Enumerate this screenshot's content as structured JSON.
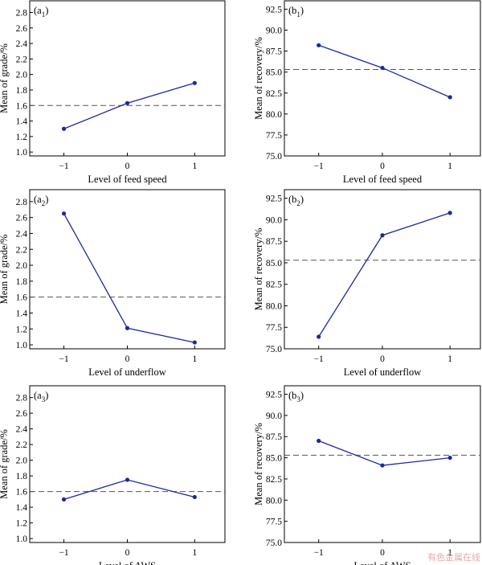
{
  "colors": {
    "series": "#1c2a9c",
    "reference": "#555555",
    "watermark": "#e8a8a8"
  },
  "watermark": "有色金属在线",
  "chart_data": [
    {
      "type": "line",
      "id": "a1",
      "panel_base": "a",
      "panel_sub": "1",
      "xlabel": "Level of feed speed",
      "ylabel": "Mean of grade/%",
      "x": [
        -1,
        0,
        1
      ],
      "values": [
        1.3,
        1.63,
        1.89
      ],
      "reference": 1.6,
      "ylim": [
        0.95,
        2.95
      ],
      "yticks": [
        "1.0",
        "1.2",
        "1.4",
        "1.6",
        "1.8",
        "2.0",
        "2.2",
        "2.4",
        "2.6",
        "2.8"
      ],
      "xticks": [
        "−1",
        "0",
        "1"
      ],
      "grid": false
    },
    {
      "type": "line",
      "id": "b1",
      "panel_base": "b",
      "panel_sub": "1",
      "xlabel": "Level of feed speed",
      "ylabel": "Mean of recovery/%",
      "x": [
        -1,
        0,
        1
      ],
      "values": [
        88.2,
        85.5,
        82.0
      ],
      "reference": 85.3,
      "ylim": [
        75.0,
        93.5
      ],
      "yticks": [
        "75.0",
        "77.5",
        "80.0",
        "82.5",
        "85.0",
        "87.5",
        "90.0",
        "92.5"
      ],
      "xticks": [
        "−1",
        "0",
        "1"
      ],
      "grid": false
    },
    {
      "type": "line",
      "id": "a2",
      "panel_base": "a",
      "panel_sub": "2",
      "xlabel": "Level of underflow",
      "ylabel": "Mean of grade/%",
      "x": [
        -1,
        0,
        1
      ],
      "values": [
        2.65,
        1.21,
        1.03
      ],
      "reference": 1.6,
      "ylim": [
        0.95,
        2.95
      ],
      "yticks": [
        "1.0",
        "1.2",
        "1.4",
        "1.6",
        "1.8",
        "2.0",
        "2.2",
        "2.4",
        "2.6",
        "2.8"
      ],
      "xticks": [
        "−1",
        "0",
        "1"
      ],
      "grid": false
    },
    {
      "type": "line",
      "id": "b2",
      "panel_base": "b",
      "panel_sub": "2",
      "xlabel": "Level of underflow",
      "ylabel": "Mean of recovery/%",
      "x": [
        -1,
        0,
        1
      ],
      "values": [
        76.4,
        88.2,
        90.8
      ],
      "reference": 85.3,
      "ylim": [
        75.0,
        93.5
      ],
      "yticks": [
        "75.0",
        "77.5",
        "80.0",
        "82.5",
        "85.0",
        "87.5",
        "90.0",
        "92.5"
      ],
      "xticks": [
        "−1",
        "0",
        "1"
      ],
      "grid": false
    },
    {
      "type": "line",
      "id": "a3",
      "panel_base": "a",
      "panel_sub": "3",
      "xlabel": "Level of AWS",
      "ylabel": "Mean of grade/%",
      "x": [
        -1,
        0,
        1
      ],
      "values": [
        1.5,
        1.75,
        1.53
      ],
      "reference": 1.6,
      "ylim": [
        0.95,
        2.95
      ],
      "yticks": [
        "1.0",
        "1.2",
        "1.4",
        "1.6",
        "1.8",
        "2.0",
        "2.2",
        "2.4",
        "2.6",
        "2.8"
      ],
      "xticks": [
        "−1",
        "0",
        "1"
      ],
      "grid": false
    },
    {
      "type": "line",
      "id": "b3",
      "panel_base": "b",
      "panel_sub": "3",
      "xlabel": "Level of AWS",
      "ylabel": "Mean of recovery/%",
      "x": [
        -1,
        0,
        1
      ],
      "values": [
        87.0,
        84.1,
        85.0
      ],
      "reference": 85.3,
      "ylim": [
        75.0,
        93.5
      ],
      "yticks": [
        "75.0",
        "77.5",
        "80.0",
        "82.5",
        "85.0",
        "87.5",
        "90.0",
        "92.5"
      ],
      "xticks": [
        "−1",
        "0",
        "1"
      ],
      "grid": false
    }
  ]
}
